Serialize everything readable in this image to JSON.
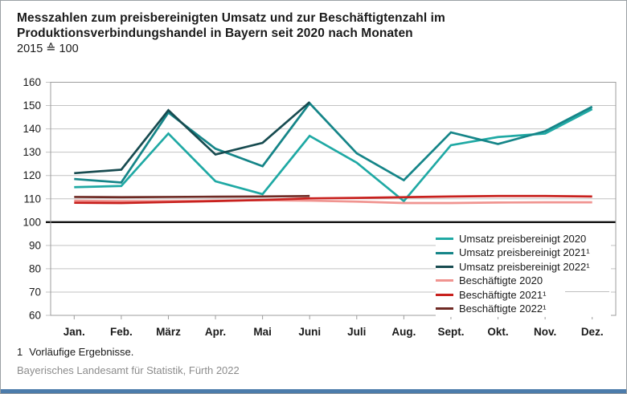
{
  "title": {
    "line1": "Messzahlen zum preisbereinigten Umsatz und zur Beschäftigtenzahl im",
    "line2": "Produktionsverbindungshandel in Bayern seit 2020 nach Monaten",
    "unit_note": "2015 ≙ 100"
  },
  "footnote": {
    "marker": "1",
    "text": "Vorläufige Ergebnisse."
  },
  "source": "Bayerisches Landesamt für Statistik, Fürth 2022",
  "colors": {
    "grid": "#c2c2c2",
    "plot_border": "#9c9c9c",
    "baseline_100": "#111111",
    "axis_text": "#1a1a1a",
    "source_text": "#8c8c8c",
    "bottom_bar": "#4c7cab"
  },
  "chart_data": {
    "type": "line",
    "title": "Messzahlen zum preisbereinigten Umsatz und zur Beschäftigtenzahl im Produktionsverbindungshandel in Bayern seit 2020 nach Monaten",
    "subtitle": "2015 ≙ 100",
    "categories": [
      "Jan.",
      "Feb.",
      "März",
      "Apr.",
      "Mai",
      "Juni",
      "Juli",
      "Aug.",
      "Sept.",
      "Okt.",
      "Nov.",
      "Dez."
    ],
    "ylim": [
      60,
      160
    ],
    "ytick_step": 10,
    "baseline": 100,
    "grid": true,
    "legend_position": "inside-right",
    "series": [
      {
        "name": "Umsatz preisbereinigt 2020",
        "color": "#1fa9a4",
        "values": [
          115,
          115.5,
          138,
          117.5,
          112,
          137,
          125.5,
          109,
          133,
          136.5,
          138,
          148.5
        ]
      },
      {
        "name": "Umsatz preisbereinigt 2021¹",
        "color": "#158588",
        "values": [
          118.5,
          117,
          147,
          131.5,
          124,
          151,
          129.5,
          118,
          138.5,
          133.5,
          139,
          149.5
        ]
      },
      {
        "name": "Umsatz preisbereinigt 2022¹",
        "color": "#174b50",
        "values": [
          121,
          122.5,
          148,
          129,
          134,
          151.5,
          null,
          null,
          null,
          null,
          null,
          null
        ]
      },
      {
        "name": "Beschäftigte 2020",
        "color": "#f09490",
        "values": [
          109.2,
          109,
          109,
          109.2,
          109.4,
          109.2,
          108.8,
          108.2,
          108.2,
          108.4,
          108.5,
          108.5
        ]
      },
      {
        "name": "Beschäftigte 2021¹",
        "color": "#c8211e",
        "values": [
          108.3,
          108.2,
          108.6,
          109,
          109.5,
          110.2,
          110.4,
          110.7,
          111,
          111.2,
          111.2,
          111
        ]
      },
      {
        "name": "Beschäftigte 2022¹",
        "color": "#6f2a24",
        "values": [
          110.8,
          110.7,
          110.8,
          110.9,
          111,
          111.2,
          null,
          null,
          null,
          null,
          null,
          null
        ]
      }
    ]
  }
}
